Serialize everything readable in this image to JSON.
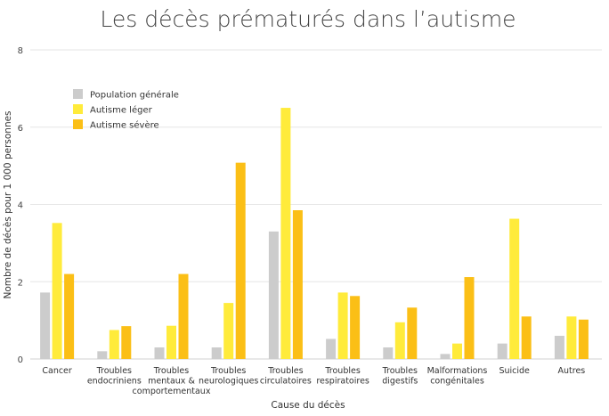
{
  "chart_data": {
    "type": "bar",
    "title": "Les décès prématurés dans l’autisme",
    "xlabel": "Cause du décès",
    "ylabel": "Nombre de décès pour 1 000 personnes",
    "ylim": [
      0,
      8
    ],
    "yticks": [
      0,
      2,
      4,
      6,
      8
    ],
    "grid": true,
    "legend_position": "top-left",
    "categories": [
      [
        "Cancer"
      ],
      [
        "Troubles",
        "endocriniens"
      ],
      [
        "Troubles",
        "mentaux &",
        "comportementaux"
      ],
      [
        "Troubles",
        "neurologiques"
      ],
      [
        "Troubles",
        "circulatoires"
      ],
      [
        "Troubles",
        "respiratoires"
      ],
      [
        "Troubles",
        "digestifs"
      ],
      [
        "Malformations",
        "congénitales"
      ],
      [
        "Suicide"
      ],
      [
        "Autres"
      ]
    ],
    "series": [
      {
        "name": "Population générale",
        "color": "#cccccc",
        "values": [
          1.72,
          0.2,
          0.3,
          0.3,
          3.3,
          0.52,
          0.3,
          0.13,
          0.4,
          0.6
        ]
      },
      {
        "name": "Autisme léger",
        "color": "#ffeb3b",
        "values": [
          3.52,
          0.75,
          0.86,
          1.45,
          6.5,
          1.72,
          0.95,
          0.4,
          3.63,
          1.1
        ]
      },
      {
        "name": "Autisme sévère",
        "color": "#fbbf16",
        "values": [
          2.2,
          0.85,
          2.2,
          5.08,
          3.85,
          1.63,
          1.33,
          2.12,
          1.1,
          1.02
        ]
      }
    ]
  }
}
